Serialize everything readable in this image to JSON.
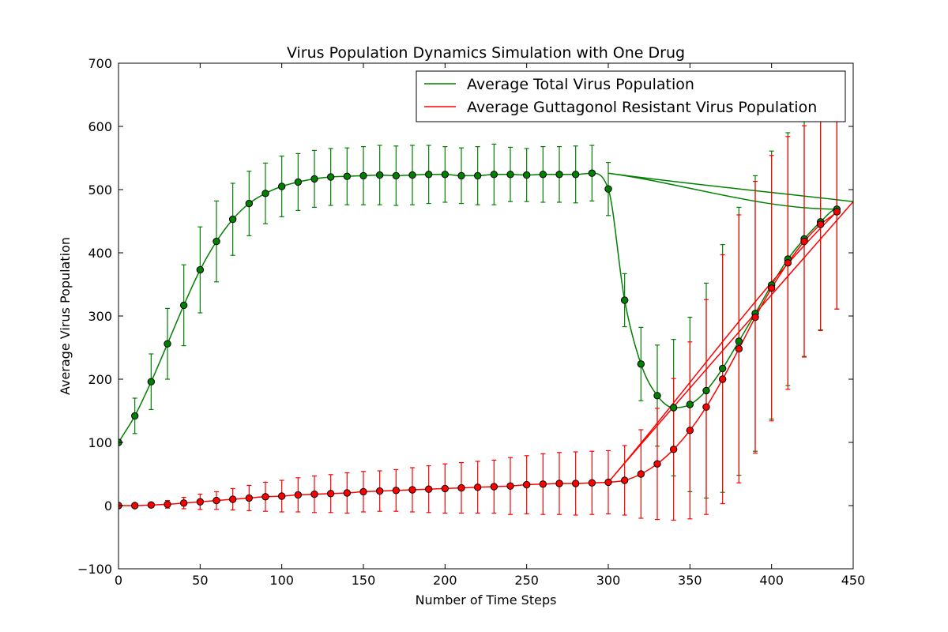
{
  "chart_data": {
    "type": "line",
    "title": "Virus Population Dynamics Simulation with One Drug",
    "xlabel": "Number of Time Steps",
    "ylabel": "Average Virus Population",
    "xlim": [
      0,
      450
    ],
    "ylim": [
      -100,
      700
    ],
    "xticks": [
      "0",
      "50",
      "100",
      "150",
      "200",
      "250",
      "300",
      "350",
      "400",
      "450"
    ],
    "yticks": [
      "−100",
      "0",
      "100",
      "200",
      "300",
      "400",
      "500",
      "600",
      "700"
    ],
    "grid": false,
    "legend_position": "top-right",
    "marker_x": [
      0,
      10,
      20,
      30,
      40,
      50,
      60,
      70,
      80,
      90,
      100,
      110,
      120,
      130,
      140,
      150,
      160,
      170,
      180,
      190,
      200,
      210,
      220,
      230,
      240,
      250,
      260,
      270,
      280,
      290,
      300,
      310,
      320,
      330,
      340,
      350,
      360,
      370,
      380,
      390,
      400,
      410,
      420,
      430,
      440
    ],
    "series": [
      {
        "name": "Average Total Virus Population",
        "color": "#008000",
        "values": [
          100,
          142,
          196,
          256,
          317,
          373,
          418,
          453,
          478,
          494,
          505,
          512,
          517,
          520,
          521,
          522,
          523,
          522,
          523,
          524,
          524,
          522,
          522,
          524,
          524,
          523,
          524,
          524,
          524,
          526,
          501,
          325,
          224,
          174,
          155,
          160,
          182,
          217,
          260,
          304,
          349,
          390,
          422,
          449,
          469
        ],
        "errors": [
          0,
          28,
          44,
          56,
          64,
          68,
          64,
          57,
          51,
          48,
          48,
          45,
          45,
          45,
          45,
          46,
          47,
          47,
          47,
          46,
          44,
          44,
          46,
          48,
          43,
          42,
          44,
          44,
          45,
          44,
          42,
          42,
          58,
          80,
          108,
          138,
          170,
          196,
          212,
          218,
          212,
          200,
          186,
          171,
          158
        ],
        "line_x": [
          300,
          450
        ],
        "line_y": [
          526,
          481
        ]
      },
      {
        "name": "Average Guttagonol Resistant Virus Population",
        "color": "#ff0000",
        "values": [
          0,
          0,
          1,
          2,
          4,
          6,
          8,
          10,
          12,
          14,
          15,
          17,
          18,
          19,
          20,
          22,
          23,
          24,
          25,
          26,
          27,
          28,
          29,
          30,
          31,
          33,
          34,
          35,
          35,
          36,
          37,
          40,
          50,
          66,
          89,
          119,
          156,
          200,
          248,
          298,
          344,
          384,
          418,
          445,
          465
        ],
        "errors": [
          0,
          2,
          4,
          6,
          9,
          12,
          14,
          17,
          20,
          23,
          25,
          27,
          29,
          30,
          32,
          32,
          32,
          33,
          35,
          37,
          39,
          40,
          41,
          42,
          45,
          46,
          48,
          49,
          50,
          50,
          50,
          55,
          70,
          88,
          112,
          140,
          170,
          197,
          212,
          215,
          210,
          200,
          183,
          168,
          154
        ],
        "line_x": [
          300,
          450
        ],
        "line_y": [
          37,
          481
        ]
      }
    ]
  }
}
